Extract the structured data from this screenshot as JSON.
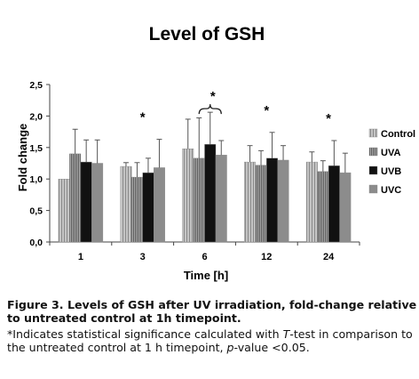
{
  "chart_data": {
    "type": "bar",
    "title": "Level of GSH",
    "xlabel": "Time [h]",
    "ylabel": "Fold change",
    "categories": [
      "1",
      "3",
      "6",
      "12",
      "24"
    ],
    "ylim": [
      0,
      2.5
    ],
    "yticks": [
      "0,0",
      "0,5",
      "1,0",
      "1,5",
      "2,0",
      "2,5"
    ],
    "series": [
      {
        "name": "Control",
        "values": [
          1.0,
          1.2,
          1.48,
          1.27,
          1.27
        ],
        "errors": [
          0.0,
          0.06,
          0.47,
          0.26,
          0.16
        ],
        "color": "#b3b3b3",
        "pattern": "stripes-light"
      },
      {
        "name": "UVA",
        "values": [
          1.4,
          1.03,
          1.33,
          1.22,
          1.12
        ],
        "errors": [
          0.39,
          0.23,
          0.64,
          0.23,
          0.17
        ],
        "color": "#888888",
        "pattern": "stripes-dense"
      },
      {
        "name": "UVB",
        "values": [
          1.27,
          1.1,
          1.55,
          1.33,
          1.21
        ],
        "errors": [
          0.35,
          0.23,
          0.51,
          0.41,
          0.4
        ],
        "color": "#111111",
        "pattern": "solid"
      },
      {
        "name": "UVC",
        "values": [
          1.25,
          1.18,
          1.38,
          1.3,
          1.1
        ],
        "errors": [
          0.37,
          0.45,
          0.23,
          0.23,
          0.31
        ],
        "color": "#8c8c8c",
        "pattern": "solid"
      }
    ],
    "significance": {
      "marker": "*",
      "categories": [
        "3",
        "6",
        "12",
        "24"
      ],
      "bracket_category": "6"
    },
    "legend_position": "right",
    "grid": false
  },
  "caption": {
    "bold_text": "Figure 3. Levels of GSH after UV irradiation, fold-change relative to untreated control at 1h timepoint.",
    "note_prefix": "*Indicates statistical significance calculated with ",
    "note_T": "T",
    "note_mid": "-test in comparison to the untreated control at 1 h timepoint, ",
    "note_p": "p",
    "note_suffix": "-value <0.05."
  }
}
